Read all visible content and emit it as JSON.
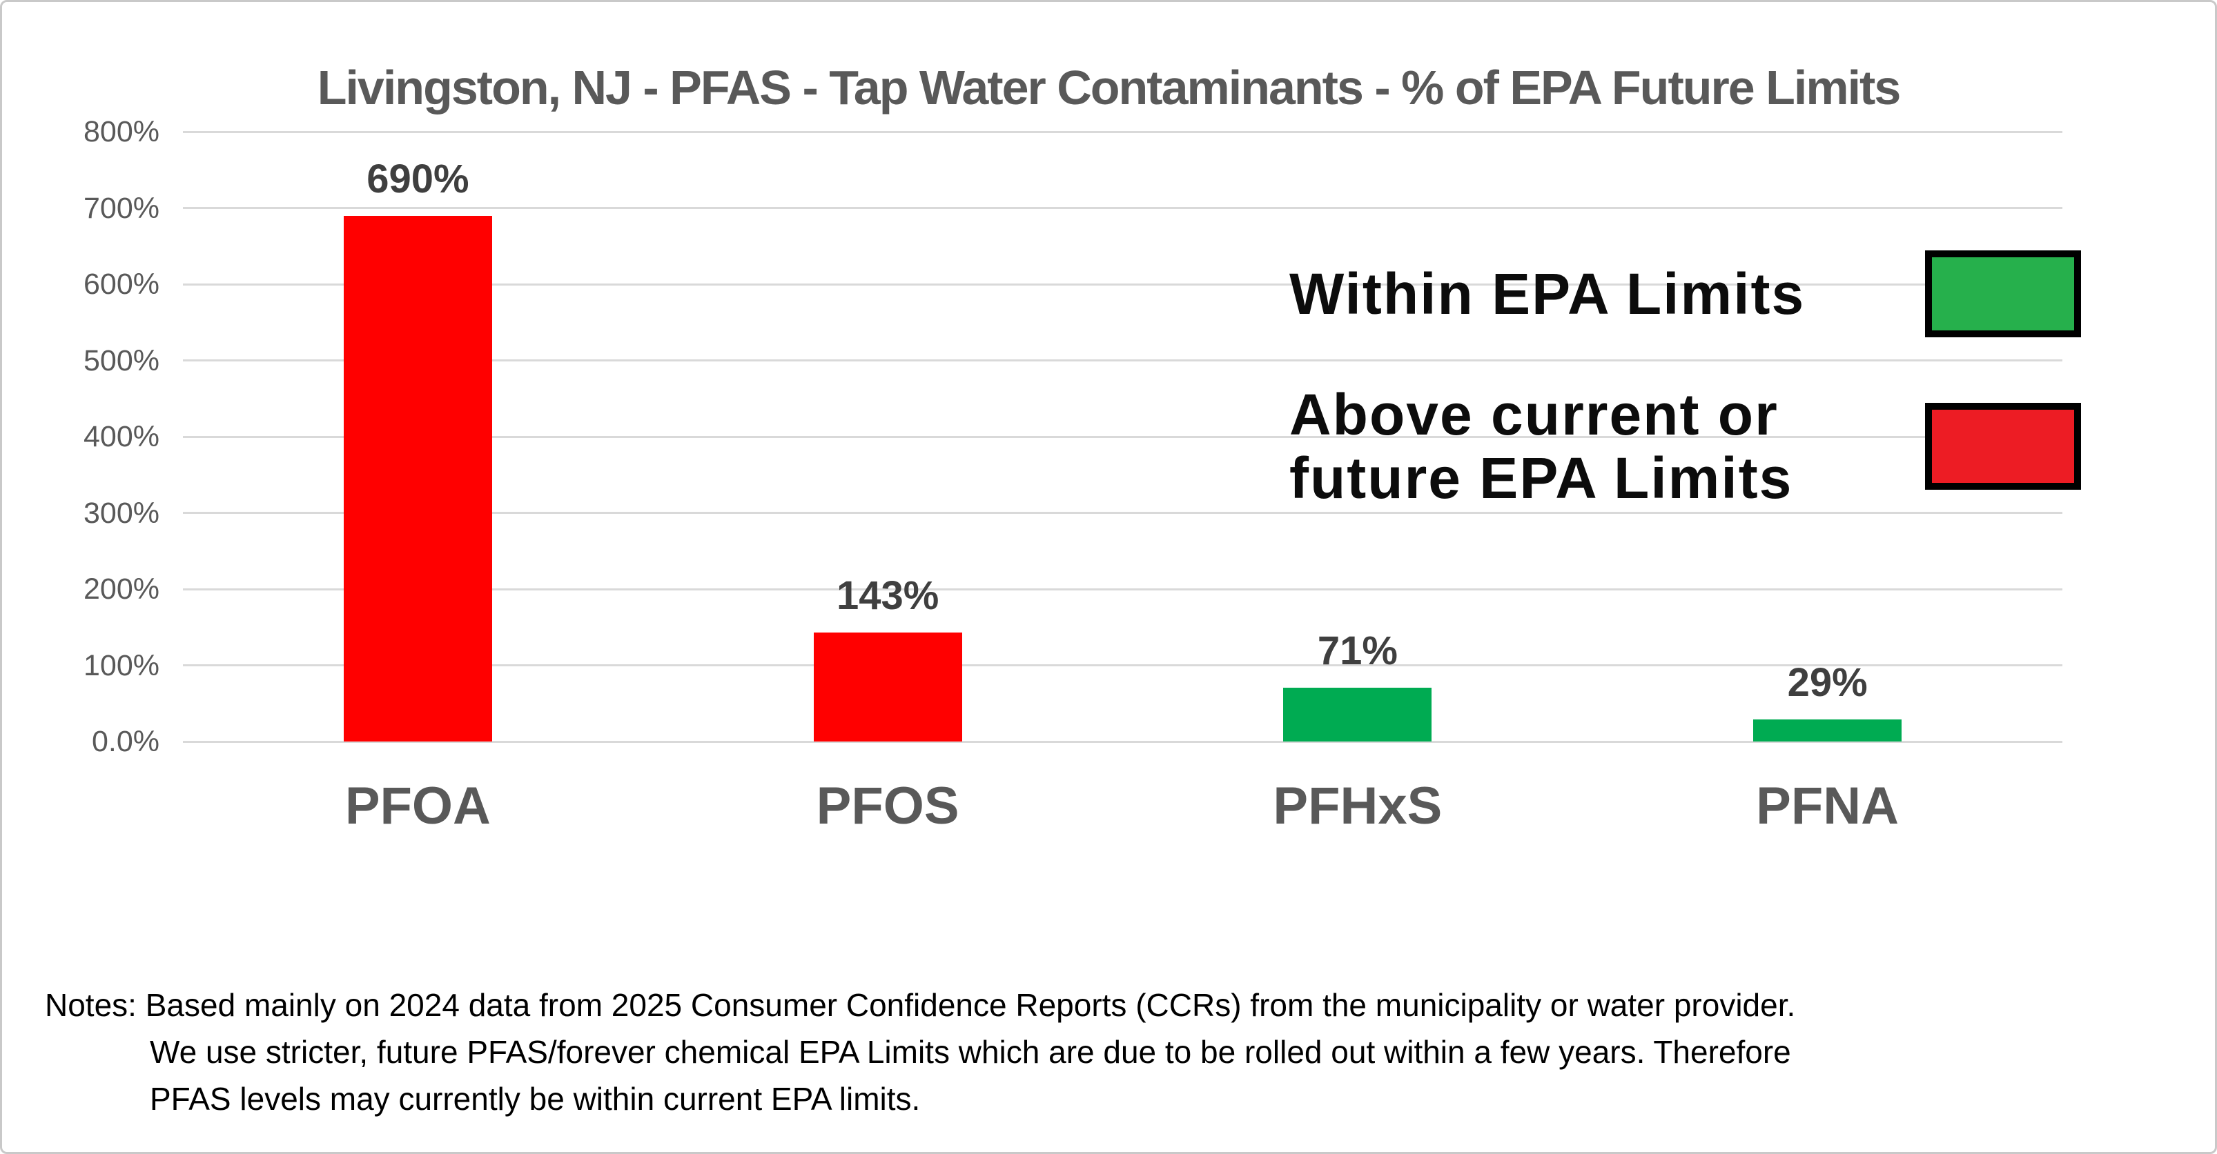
{
  "chart_data": {
    "type": "bar",
    "title": "Livingston, NJ - PFAS - Tap Water Contaminants - % of EPA Future Limits",
    "categories": [
      "PFOA",
      "PFOS",
      "PFHxS",
      "PFNA"
    ],
    "values": [
      690,
      143,
      71,
      29
    ],
    "value_labels": [
      "690%",
      "143%",
      "71%",
      "29%"
    ],
    "bar_colors": [
      "#FF0000",
      "#FF0000",
      "#00AB52",
      "#00AB52"
    ],
    "bar_status": [
      "above-epa-limit",
      "above-epa-limit",
      "within-epa-limit",
      "within-epa-limit"
    ],
    "xlabel": "",
    "ylabel": "",
    "ylim": [
      0,
      800
    ],
    "grid": "horizontal",
    "legend_position": "inside-right",
    "y_ticks": [
      {
        "value": 800,
        "label": "800%"
      },
      {
        "value": 700,
        "label": "700%"
      },
      {
        "value": 600,
        "label": "600%"
      },
      {
        "value": 500,
        "label": "500%"
      },
      {
        "value": 400,
        "label": "400%"
      },
      {
        "value": 300,
        "label": "300%"
      },
      {
        "value": 200,
        "label": "200%"
      },
      {
        "value": 100,
        "label": "100%"
      },
      {
        "value": 0,
        "label": "0.0%"
      }
    ]
  },
  "legend": {
    "items": [
      {
        "label": "Within EPA Limits",
        "lines": [
          "Within EPA Limits"
        ],
        "color": "#26B04C",
        "status": "within-epa-limit"
      },
      {
        "label": "Above current or future EPA Limits",
        "lines": [
          "Above current or",
          "future EPA Limits"
        ],
        "color": "#ED1C24",
        "status": "above-epa-limit"
      }
    ]
  },
  "notes": {
    "lines": [
      "Notes: Based mainly on 2024 data from 2025 Consumer Confidence Reports (CCRs) from the municipality or water provider.",
      "We use stricter, future PFAS/forever chemical EPA Limits which are due to be rolled out within a few years.  Therefore",
      "PFAS  levels may currently be within current EPA limits."
    ]
  },
  "colors": {
    "bar_red": "#FF0000",
    "bar_green": "#00AB52",
    "legend_green": "#26B04C",
    "legend_red": "#ED1C24",
    "gridline": "#D9D9D9",
    "axis_text": "#595959",
    "value_label_text": "#3F3F3F"
  }
}
